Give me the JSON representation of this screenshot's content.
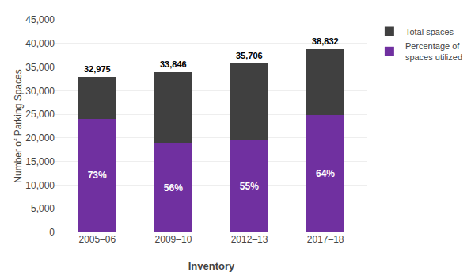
{
  "chart_data": {
    "type": "bar",
    "stacked": true,
    "xlabel": "Inventory",
    "ylabel": "Number of Parking Spaces",
    "categories": [
      "2005–06",
      "2009–10",
      "2012–13",
      "2017–18"
    ],
    "series": [
      {
        "name": "Percentage of\nspaces utilized",
        "color": "#7030A0",
        "values": [
          24072,
          18954,
          19638,
          24852
        ],
        "utilization_pct": [
          73,
          56,
          55,
          64
        ],
        "utilization_pct_labels": [
          "73%",
          "56%",
          "55%",
          "64%"
        ]
      },
      {
        "name": "Total spaces",
        "color": "#404040",
        "values": [
          8903,
          14892,
          16068,
          13980
        ]
      }
    ],
    "totals": [
      32975,
      33846,
      35706,
      38832
    ],
    "total_labels": [
      "32,975",
      "33,846",
      "35,706",
      "38,832"
    ],
    "ylim": [
      0,
      45000
    ],
    "yticks": [
      0,
      {
        "value": 5000,
        "label": "5,000"
      },
      {
        "value": 10000,
        "label": "10,000"
      },
      {
        "value": 15000,
        "label": "15,000"
      },
      {
        "value": 20000,
        "label": "20,000"
      },
      {
        "value": 25000,
        "label": "25,000"
      },
      {
        "value": 30000,
        "label": "30,000"
      },
      {
        "value": 35000,
        "label": "35,000"
      },
      {
        "value": 40000,
        "label": "40,000"
      },
      {
        "value": 45000,
        "label": "45,000"
      }
    ],
    "grid": true,
    "legend": "right"
  }
}
